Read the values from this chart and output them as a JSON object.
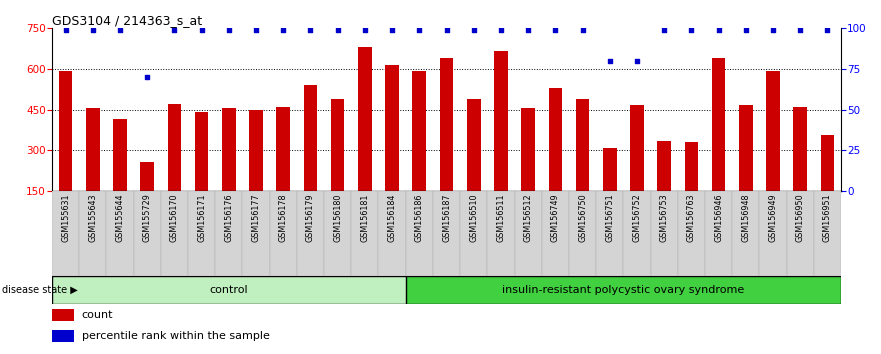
{
  "title": "GDS3104 / 214363_s_at",
  "samples": [
    "GSM155631",
    "GSM155643",
    "GSM155644",
    "GSM155729",
    "GSM156170",
    "GSM156171",
    "GSM156176",
    "GSM156177",
    "GSM156178",
    "GSM156179",
    "GSM156180",
    "GSM156181",
    "GSM156184",
    "GSM156186",
    "GSM156187",
    "GSM156510",
    "GSM156511",
    "GSM156512",
    "GSM156749",
    "GSM156750",
    "GSM156751",
    "GSM156752",
    "GSM156753",
    "GSM156763",
    "GSM156946",
    "GSM156948",
    "GSM156949",
    "GSM156950",
    "GSM156951"
  ],
  "counts": [
    590,
    455,
    415,
    255,
    470,
    440,
    455,
    450,
    460,
    540,
    490,
    680,
    615,
    590,
    640,
    490,
    665,
    455,
    530,
    490,
    310,
    465,
    335,
    330,
    640,
    465,
    590,
    460,
    355
  ],
  "percentile_ranks": [
    99,
    99,
    99,
    70,
    99,
    99,
    99,
    99,
    99,
    99,
    99,
    99,
    99,
    99,
    99,
    99,
    99,
    99,
    99,
    99,
    80,
    80,
    99,
    99,
    99,
    99,
    99,
    99,
    99
  ],
  "group_split": 13,
  "group_labels": [
    "control",
    "insulin-resistant polycystic ovary syndrome"
  ],
  "group_color_light": "#c0f0c0",
  "group_color_dark": "#40d040",
  "bar_color": "#CC0000",
  "dot_color": "#0000CC",
  "ylim_left": [
    150,
    750
  ],
  "ylim_right": [
    0,
    100
  ],
  "yticks_left": [
    150,
    300,
    450,
    600,
    750
  ],
  "yticks_right": [
    0,
    25,
    50,
    75,
    100
  ],
  "hlines": [
    300,
    450,
    600
  ],
  "legend_count_label": "count",
  "legend_pct_label": "percentile rank within the sample"
}
